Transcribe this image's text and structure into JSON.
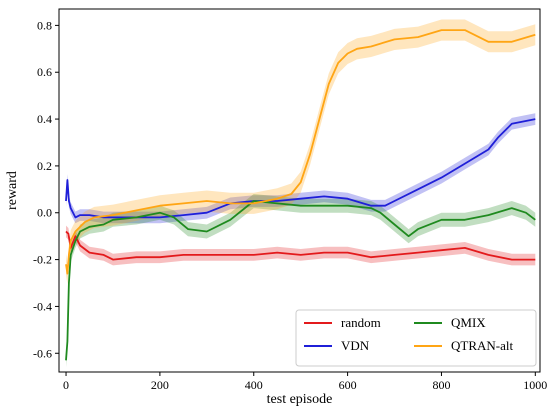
{
  "chart_data": {
    "type": "line",
    "xlabel": "test episode",
    "ylabel": "reward",
    "xlim": [
      -15,
      1010
    ],
    "ylim": [
      -0.68,
      0.87
    ],
    "xticks": [
      0,
      200,
      400,
      600,
      800,
      1000
    ],
    "yticks": [
      -0.6,
      -0.4,
      -0.2,
      0.0,
      0.2,
      0.4,
      0.6,
      0.8
    ],
    "ytick_labels": [
      "-0.6",
      "-0.4",
      "-0.2",
      "0.0",
      "0.2",
      "0.4",
      "0.6",
      "0.8"
    ],
    "grid": false,
    "legend_position": "lower-right",
    "legend_columns": 2,
    "series": [
      {
        "name": "random",
        "color": "#e31a1c",
        "x": [
          0,
          5,
          10,
          20,
          30,
          50,
          80,
          100,
          150,
          200,
          250,
          300,
          350,
          400,
          450,
          500,
          550,
          600,
          650,
          700,
          750,
          800,
          850,
          900,
          950,
          1000
        ],
        "y": [
          -0.08,
          -0.09,
          -0.15,
          -0.1,
          -0.14,
          -0.17,
          -0.18,
          -0.2,
          -0.19,
          -0.19,
          -0.18,
          -0.18,
          -0.18,
          -0.18,
          -0.17,
          -0.18,
          -0.17,
          -0.17,
          -0.19,
          -0.18,
          -0.17,
          -0.16,
          -0.15,
          -0.18,
          -0.2,
          -0.2
        ],
        "band": 0.025
      },
      {
        "name": "VDN",
        "color": "#1f1fd8",
        "x": [
          0,
          3,
          6,
          10,
          20,
          30,
          50,
          80,
          100,
          150,
          200,
          250,
          300,
          350,
          400,
          450,
          500,
          550,
          600,
          650,
          680,
          700,
          750,
          800,
          850,
          900,
          920,
          950,
          1000
        ],
        "y": [
          0.05,
          0.14,
          0.05,
          0.02,
          -0.02,
          -0.01,
          -0.01,
          -0.02,
          -0.02,
          -0.02,
          -0.02,
          -0.01,
          0.0,
          0.04,
          0.05,
          0.05,
          0.06,
          0.07,
          0.06,
          0.03,
          0.03,
          0.05,
          0.1,
          0.15,
          0.21,
          0.27,
          0.32,
          0.38,
          0.4
        ],
        "band": 0.025
      },
      {
        "name": "QMIX",
        "color": "#1f8a1f",
        "x": [
          0,
          3,
          6,
          10,
          20,
          30,
          50,
          80,
          100,
          150,
          200,
          230,
          260,
          300,
          350,
          400,
          450,
          500,
          550,
          600,
          650,
          670,
          700,
          730,
          750,
          800,
          850,
          900,
          950,
          980,
          1000
        ],
        "y": [
          -0.63,
          -0.55,
          -0.3,
          -0.18,
          -0.12,
          -0.08,
          -0.06,
          -0.05,
          -0.03,
          -0.02,
          0.0,
          -0.02,
          -0.07,
          -0.08,
          -0.03,
          0.05,
          0.04,
          0.03,
          0.03,
          0.03,
          0.02,
          0.0,
          -0.05,
          -0.1,
          -0.07,
          -0.03,
          -0.03,
          -0.01,
          0.02,
          0.0,
          -0.03
        ],
        "band": 0.03
      },
      {
        "name": "QTRAN-alt",
        "color": "#ffa514",
        "x": [
          0,
          3,
          6,
          10,
          20,
          40,
          60,
          100,
          150,
          200,
          250,
          300,
          350,
          400,
          450,
          480,
          500,
          520,
          540,
          560,
          580,
          600,
          620,
          650,
          700,
          750,
          800,
          850,
          900,
          950,
          1000
        ],
        "y": [
          -0.22,
          -0.26,
          -0.18,
          -0.12,
          -0.08,
          -0.04,
          -0.02,
          -0.01,
          0.01,
          0.03,
          0.04,
          0.05,
          0.04,
          0.04,
          0.06,
          0.08,
          0.13,
          0.25,
          0.4,
          0.55,
          0.64,
          0.68,
          0.7,
          0.71,
          0.74,
          0.75,
          0.78,
          0.78,
          0.73,
          0.73,
          0.76
        ],
        "band": 0.045
      }
    ]
  }
}
